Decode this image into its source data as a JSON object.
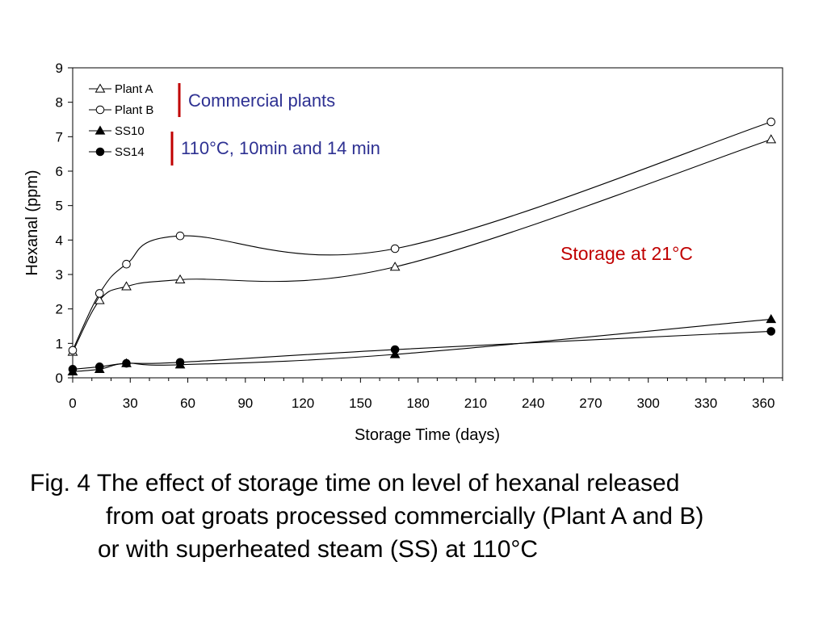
{
  "chart_data": {
    "type": "line",
    "xlabel": "Storage Time (days)",
    "ylabel": "Hexanal (ppm)",
    "xlim": [
      0,
      370
    ],
    "ylim": [
      0,
      9
    ],
    "x_ticks": [
      0,
      30,
      60,
      90,
      120,
      150,
      180,
      210,
      240,
      270,
      300,
      330,
      360
    ],
    "y_ticks": [
      0,
      1,
      2,
      3,
      4,
      5,
      6,
      7,
      8,
      9
    ],
    "legend_position": "top-left",
    "grid": false,
    "series": [
      {
        "name": "Plant A",
        "marker": "triangle-open",
        "x": [
          0,
          14,
          28,
          56,
          168,
          364
        ],
        "y": [
          0.75,
          2.25,
          2.65,
          2.85,
          3.22,
          6.92
        ]
      },
      {
        "name": "Plant B",
        "marker": "circle-open",
        "x": [
          0,
          14,
          28,
          56,
          168,
          364
        ],
        "y": [
          0.8,
          2.45,
          3.3,
          4.12,
          3.75,
          7.43
        ]
      },
      {
        "name": "SS10",
        "marker": "triangle-filled",
        "x": [
          0,
          14,
          28,
          56,
          168,
          364
        ],
        "y": [
          0.18,
          0.25,
          0.42,
          0.38,
          0.68,
          1.7
        ]
      },
      {
        "name": "SS14",
        "marker": "circle-filled",
        "x": [
          0,
          14,
          28,
          56,
          168,
          364
        ],
        "y": [
          0.25,
          0.32,
          0.42,
          0.45,
          0.82,
          1.35
        ]
      }
    ],
    "annotations": {
      "commercial": "Commercial plants",
      "steam": "110°C, 10min and 14 min",
      "storage": "Storage at 21°C"
    },
    "colors": {
      "line": "#000000",
      "annot_blue": "#2e3192",
      "annot_red": "#c00000"
    }
  },
  "caption": {
    "line1": "Fig. 4 The effect of storage time on level of hexanal released",
    "line2": "from oat groats processed commercially (Plant A and B)",
    "line3": "or with superheated steam (SS) at 110°C"
  }
}
